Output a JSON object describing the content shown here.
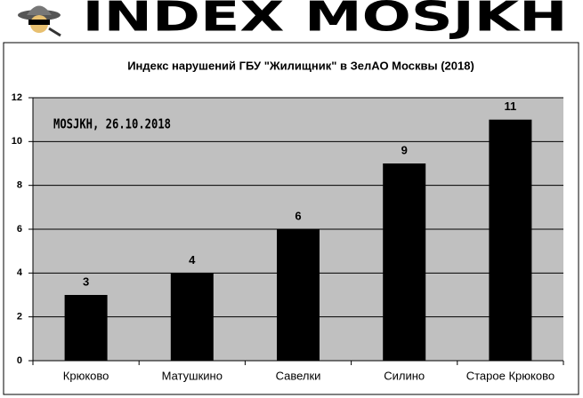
{
  "header": {
    "logo_text": "INDEX MOSJKH"
  },
  "chart_data": {
    "type": "bar",
    "title": "Индекс нарушений ГБУ \"Жилищник\" в ЗелАО Москвы (2018)",
    "annotation": "MOSJKH, 26.10.2018",
    "categories": [
      "Крюково",
      "Матушкино",
      "Савелки",
      "Силино",
      "Старое Крюково"
    ],
    "values": [
      3,
      4,
      6,
      9,
      11
    ],
    "color": "#000000",
    "ylim": [
      0,
      12
    ],
    "yticks": [
      0,
      2,
      4,
      6,
      8,
      10,
      12
    ],
    "grid": true
  }
}
